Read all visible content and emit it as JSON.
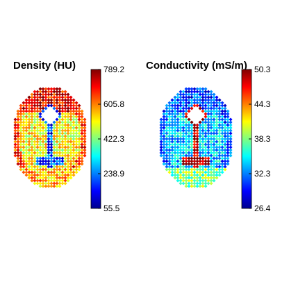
{
  "chart_data": [
    {
      "type": "heatmap",
      "title": "Density (HU)",
      "colorbar": {
        "colormap": "jet",
        "range": [
          55.5,
          789.2
        ],
        "ticks": [
          {
            "label": "789.2",
            "value": 789.2
          },
          {
            "label": "605.8",
            "value": 605.8
          },
          {
            "label": "422.3",
            "value": 422.3
          },
          {
            "label": "238.9",
            "value": 238.9
          },
          {
            "label": "55.5",
            "value": 55.5
          }
        ]
      },
      "map": {
        "region": "axial brain slice",
        "background_level": 0.62,
        "rim_level": 0.82,
        "frontal_level": 0.88,
        "vent_level": 0.18,
        "occipital_level": 0.7
      }
    },
    {
      "type": "heatmap",
      "title": "Conductivity (mS/m)",
      "colorbar": {
        "colormap": "jet",
        "range": [
          26.4,
          50.3
        ],
        "ticks": [
          {
            "label": "50.3",
            "value": 50.3
          },
          {
            "label": "44.3",
            "value": 44.3
          },
          {
            "label": "38.3",
            "value": 38.3
          },
          {
            "label": "32.3",
            "value": 32.3
          },
          {
            "label": "26.4",
            "value": 26.4
          }
        ]
      },
      "map": {
        "region": "axial brain slice",
        "background_level": 0.32,
        "rim_level": 0.22,
        "frontal_level": 0.2,
        "vent_level": 0.95,
        "occipital_level": 0.5
      }
    }
  ]
}
